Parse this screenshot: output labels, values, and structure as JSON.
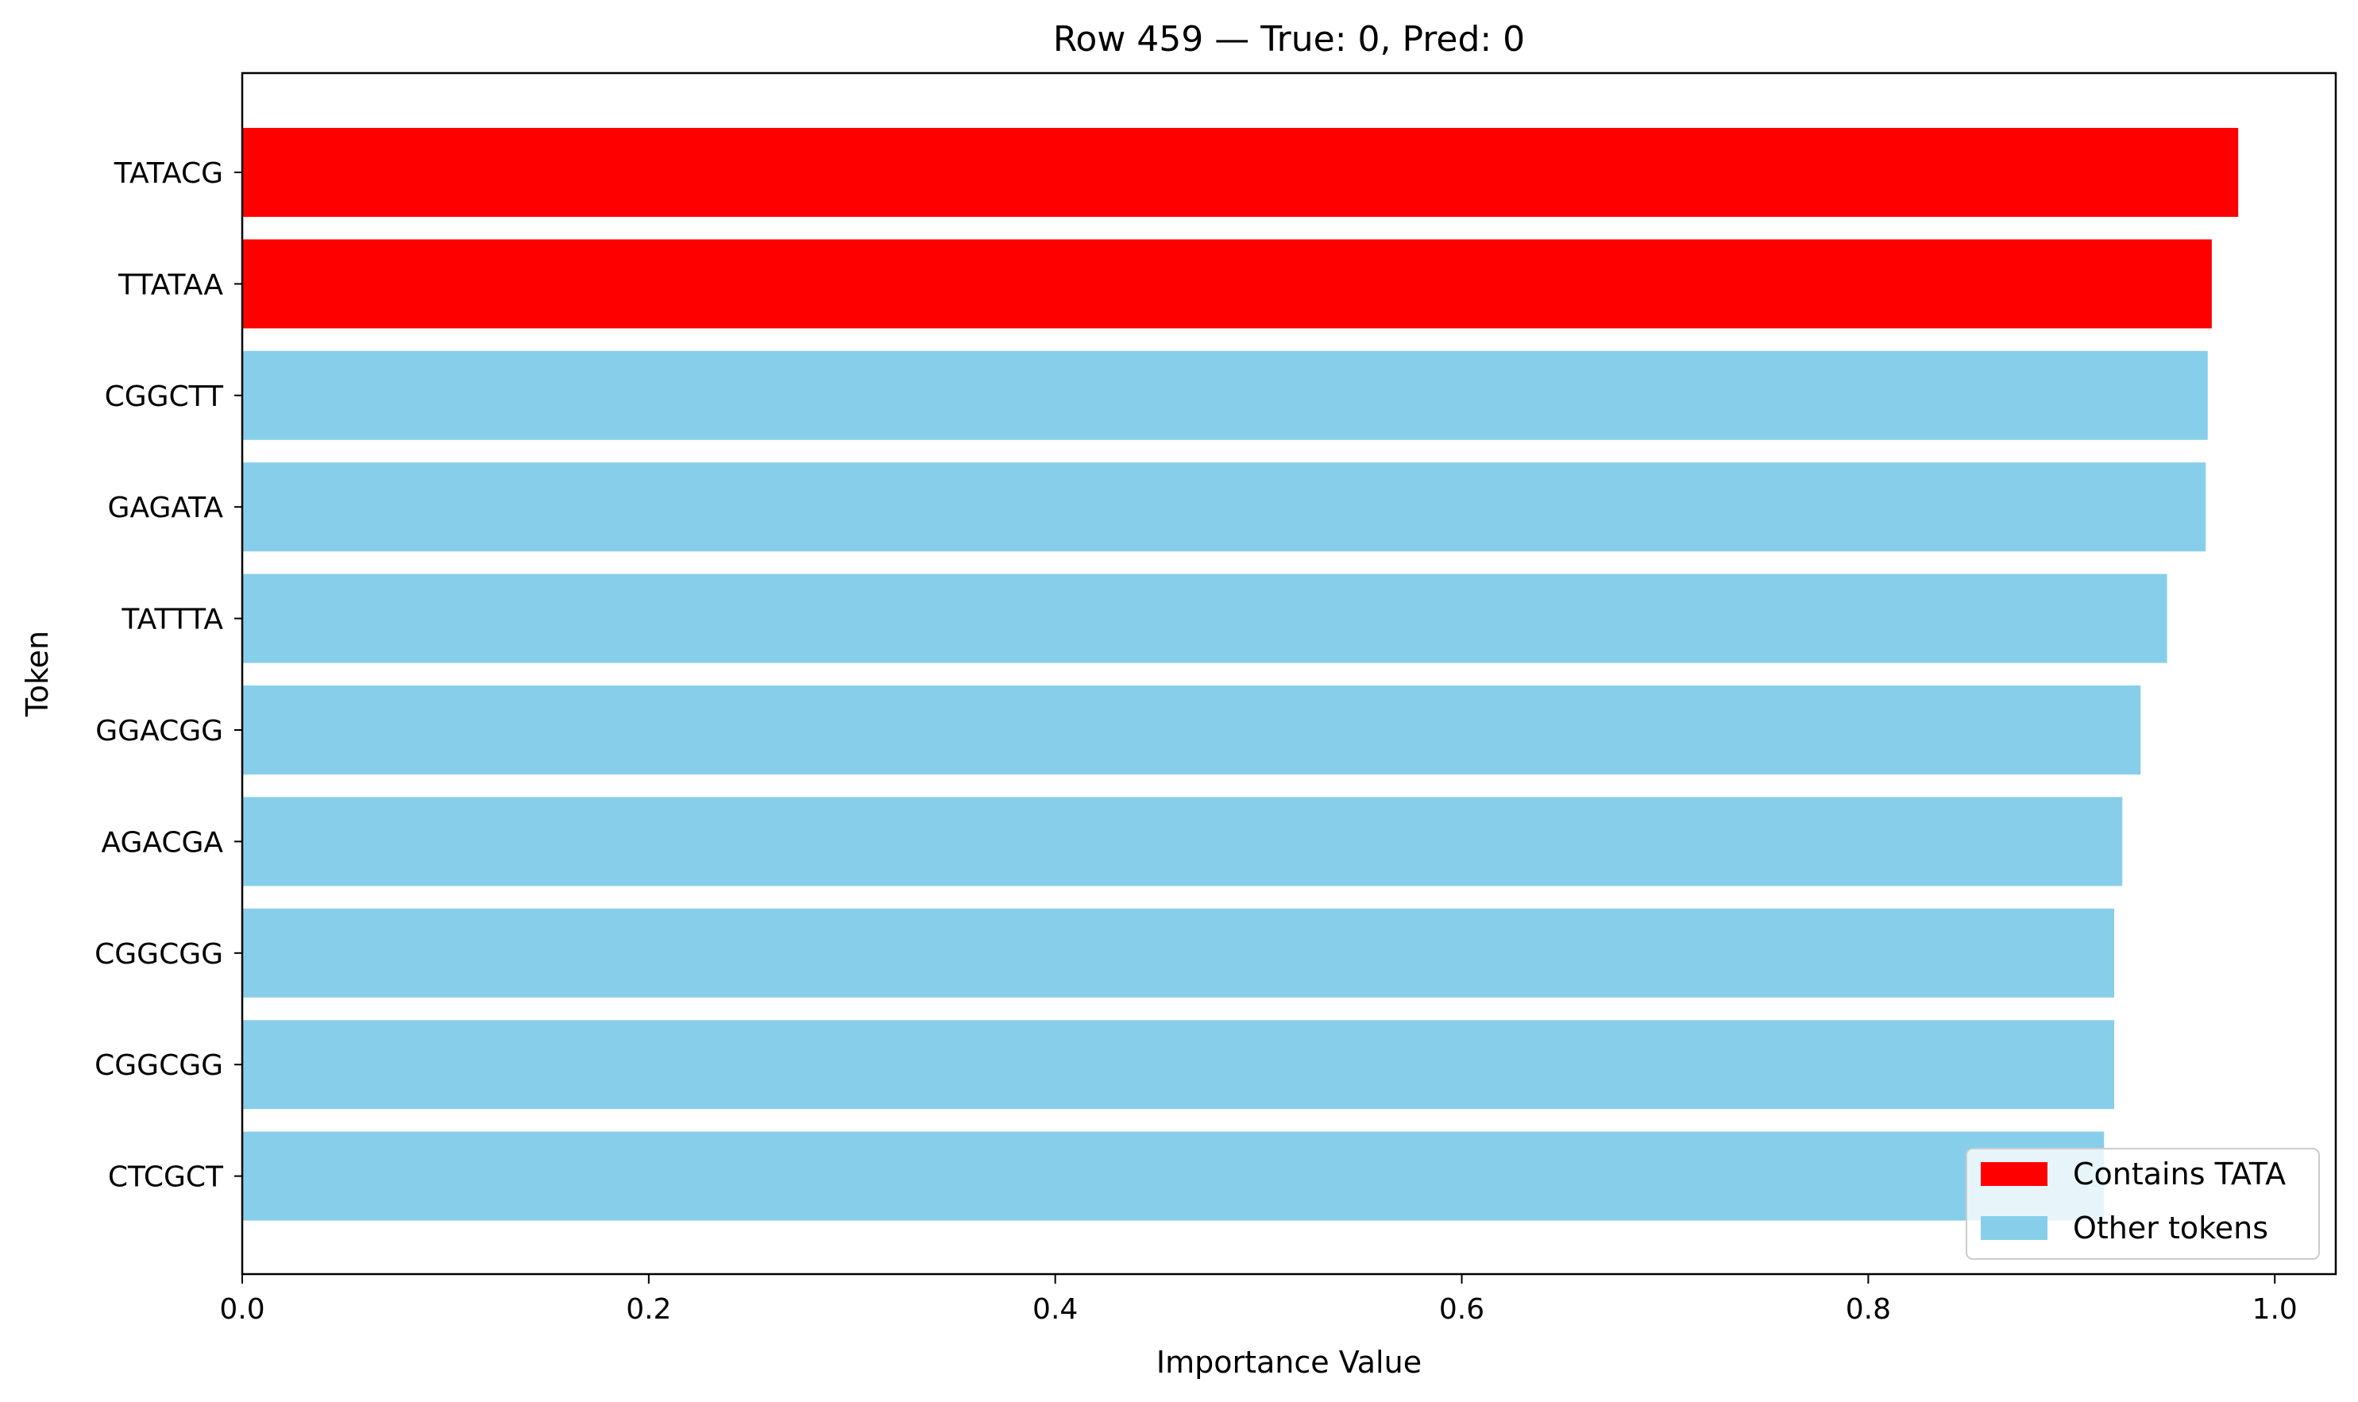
{
  "chart_data": {
    "type": "bar",
    "orientation": "horizontal",
    "title": "Row 459 — True: 0, Pred: 0",
    "xlabel": "Importance Value",
    "ylabel": "Token",
    "xlim": [
      0,
      1.03
    ],
    "xticks": [
      0.0,
      0.2,
      0.4,
      0.6,
      0.8,
      1.0
    ],
    "xtick_labels": [
      "0.0",
      "0.2",
      "0.4",
      "0.6",
      "0.8",
      "1.0"
    ],
    "grid": false,
    "legend_position": "lower-right",
    "categories": [
      "TATACG",
      "TTATAA",
      "CGGCTT",
      "GAGATA",
      "TATTTA",
      "GGACGG",
      "AGACGA",
      "CGGCGG",
      "CGGCGG",
      "CTCGCT"
    ],
    "values": [
      0.982,
      0.969,
      0.967,
      0.966,
      0.947,
      0.934,
      0.925,
      0.921,
      0.921,
      0.916
    ],
    "bar_groups": [
      "Contains TATA",
      "Contains TATA",
      "Other tokens",
      "Other tokens",
      "Other tokens",
      "Other tokens",
      "Other tokens",
      "Other tokens",
      "Other tokens",
      "Other tokens"
    ],
    "legend": [
      {
        "label": "Contains TATA",
        "color": "#ff0000"
      },
      {
        "label": "Other tokens",
        "color": "#87ceeb"
      }
    ]
  }
}
